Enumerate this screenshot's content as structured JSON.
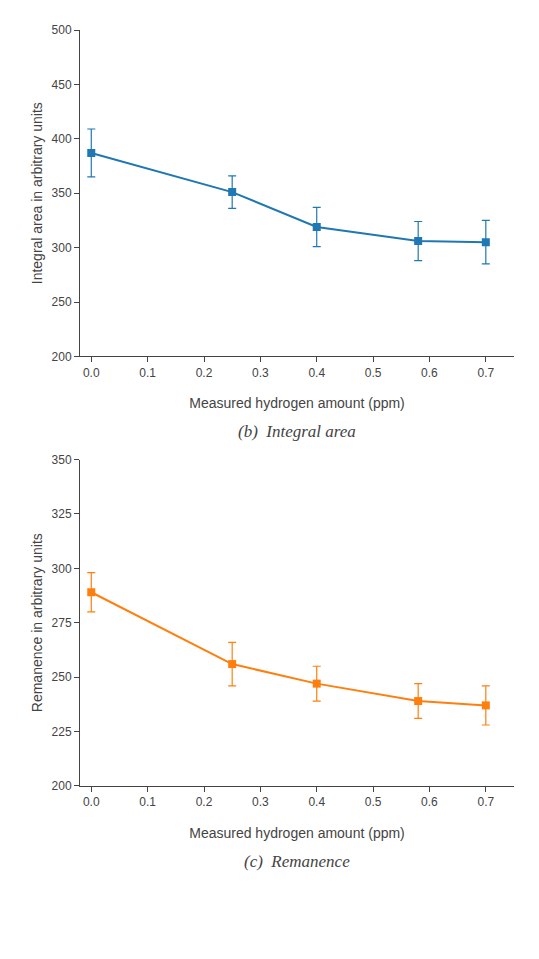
{
  "chart_data": [
    {
      "type": "line",
      "title": "(b)  Integral area",
      "x": [
        0.0,
        0.25,
        0.4,
        0.58,
        0.7
      ],
      "values": [
        387,
        351,
        319,
        306,
        305
      ],
      "yerr": [
        22,
        15,
        18,
        18,
        20
      ],
      "marker": "square",
      "xlabel": "Measured hydrogen amount (ppm)",
      "ylabel": "Integral area in arbitrary units",
      "xlim": [
        -0.02,
        0.75
      ],
      "xticks": [
        {
          "value": 0,
          "label": "0.0"
        },
        0.1,
        0.2,
        0.3,
        0.4,
        0.5,
        0.6,
        0.7
      ],
      "ylim": [
        200,
        500
      ],
      "yticks": [
        200,
        250,
        300,
        350,
        400,
        450,
        500
      ],
      "grid": false
    },
    {
      "type": "line",
      "title": "(c)  Remanence",
      "x": [
        0.0,
        0.25,
        0.4,
        0.58,
        0.7
      ],
      "values": [
        289,
        256,
        247,
        239,
        237
      ],
      "yerr": [
        9,
        10,
        8,
        8,
        9
      ],
      "marker": "square",
      "xlabel": "Measured hydrogen amount (ppm)",
      "ylabel": "Remanence in arbitrary units",
      "xlim": [
        -0.02,
        0.75
      ],
      "xticks": [
        {
          "value": 0,
          "label": "0.0"
        },
        0.1,
        0.2,
        0.3,
        0.4,
        0.5,
        0.6,
        0.7
      ],
      "ylim": [
        200,
        350
      ],
      "yticks": [
        200,
        225,
        250,
        275,
        300,
        325,
        350
      ],
      "grid": false
    }
  ]
}
